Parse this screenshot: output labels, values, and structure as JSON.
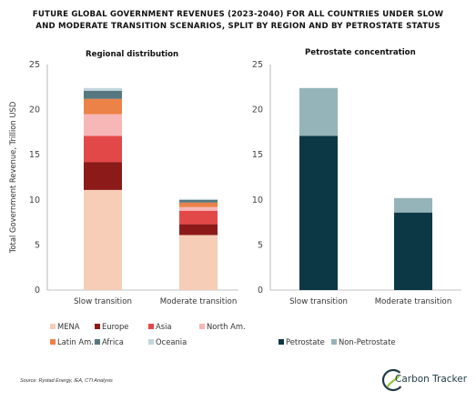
{
  "title_line1": "FUTURE GLOBAL GOVERNMENT REVENUES (2023-2040) FOR ALL COUNTRIES UNDER SLOW",
  "title_line2": "AND MODERATE TRANSITION SCENARIOS, SPLIT BY REGION AND BY PETROSTATE STATUS",
  "source": "Source: Rystad Energy, IEA, CTI Analysis",
  "logo_text": "Carbon Tracker",
  "chart_data": [
    {
      "type": "bar",
      "stacked": true,
      "title": "Regional distribution",
      "ylabel": "Total Government Revenue, Trillion USD",
      "ylim": [
        0,
        25
      ],
      "yticks": [
        0,
        5,
        10,
        15,
        20,
        25
      ],
      "categories": [
        "Slow transition",
        "Moderate transition"
      ],
      "legend_position": "bottom",
      "series": [
        {
          "name": "MENA",
          "color": "#f6cdb7",
          "values": [
            11.1,
            6.1
          ]
        },
        {
          "name": "Europe",
          "color": "#8b1a18",
          "values": [
            3.1,
            1.2
          ]
        },
        {
          "name": "Asia",
          "color": "#e34848",
          "values": [
            2.9,
            1.5
          ]
        },
        {
          "name": "North Am.",
          "color": "#f7b7b7",
          "values": [
            2.4,
            0.4
          ]
        },
        {
          "name": "Latin Am.",
          "color": "#ec8248",
          "values": [
            1.7,
            0.5
          ]
        },
        {
          "name": "Africa",
          "color": "#56777f",
          "values": [
            0.9,
            0.3
          ]
        },
        {
          "name": "Oceania",
          "color": "#c1d6dc",
          "values": [
            0.3,
            0.1
          ]
        }
      ]
    },
    {
      "type": "bar",
      "stacked": true,
      "title": "Petrostate concentration",
      "ylim": [
        0,
        25
      ],
      "yticks": [
        0,
        5,
        10,
        15,
        20,
        25
      ],
      "categories": [
        "Slow transition",
        "Moderate transition"
      ],
      "legend_position": "bottom",
      "series": [
        {
          "name": "Petrostate",
          "color": "#0c3845",
          "values": [
            17.1,
            8.6
          ]
        },
        {
          "name": "Non-Petrostate",
          "color": "#95b4b9",
          "values": [
            5.3,
            1.6
          ]
        }
      ]
    }
  ]
}
